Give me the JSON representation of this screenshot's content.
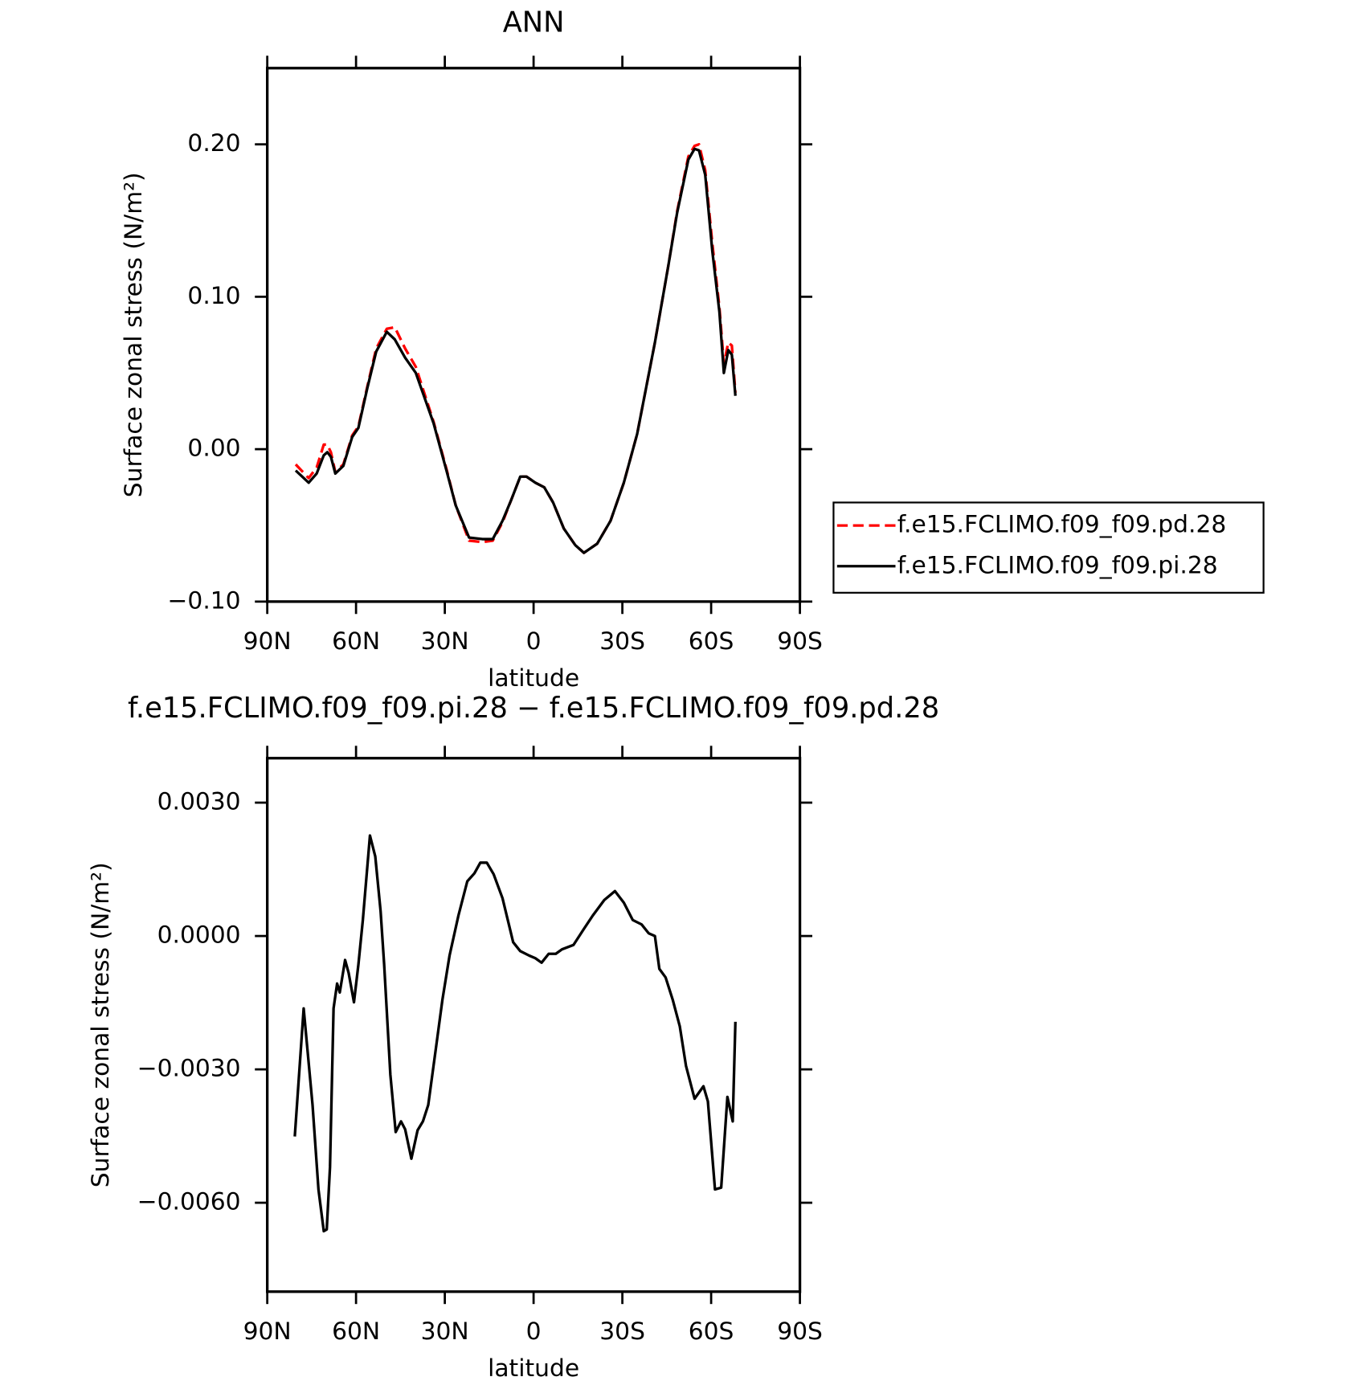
{
  "chart_data": [
    {
      "type": "line",
      "title": "ANN",
      "x_label": "latitude",
      "y_label": "Surface zonal stress (N/m²)",
      "xlim": [
        90,
        -90
      ],
      "xticks": [
        {
          "value": 90,
          "label": "90N"
        },
        {
          "value": 60,
          "label": "60N"
        },
        {
          "value": 30,
          "label": "30N"
        },
        0,
        {
          "value": -30,
          "label": "30S"
        },
        {
          "value": -60,
          "label": "60S"
        },
        {
          "value": -90,
          "label": "90S"
        }
      ],
      "ylim": [
        -0.1,
        0.25
      ],
      "yticks": [
        {
          "value": -0.1,
          "label": "−0.10"
        },
        {
          "value": 0,
          "label": "0.00"
        },
        {
          "value": 0.1,
          "label": "0.10"
        },
        {
          "value": 0.2,
          "label": "0.20"
        }
      ],
      "legend": "outside-right",
      "x": [
        80.4,
        76,
        73.3,
        70.9,
        69.7,
        68.5,
        67,
        64.3,
        61.3,
        59.2,
        56.2,
        53.2,
        49.6,
        46.9,
        43.4,
        39.8,
        33.8,
        29.3,
        26.3,
        21.8,
        17.3,
        13.8,
        10.5,
        7.5,
        4.5,
        2.4,
        -0.6,
        -3.6,
        -6.6,
        -10.2,
        -14.1,
        -17,
        -21.5,
        -26,
        -30.5,
        -35,
        -41,
        -45.5,
        -48.5,
        -52.3,
        -54.4,
        -55.9,
        -58,
        -60.4,
        -62.8,
        -64.3,
        -65.8,
        -67,
        -68.2
      ],
      "series": [
        {
          "name": "f.e15.FCLIMO.f09_f09.pd.28",
          "color": "#ff0000",
          "line_style": "dashed",
          "values": [
            -0.01,
            -0.019,
            -0.012,
            0.003,
            0.003,
            -0.002,
            -0.015,
            -0.01,
            0.009,
            0.015,
            0.041,
            0.066,
            0.079,
            0.08,
            0.066,
            0.054,
            0.018,
            -0.014,
            -0.037,
            -0.06,
            -0.061,
            -0.06,
            -0.048,
            -0.033,
            -0.018,
            -0.018,
            -0.022,
            -0.025,
            -0.035,
            -0.052,
            -0.063,
            -0.068,
            -0.062,
            -0.047,
            -0.022,
            0.01,
            0.07,
            0.12,
            0.156,
            0.192,
            0.199,
            0.2,
            0.183,
            0.135,
            0.093,
            0.056,
            0.07,
            0.068,
            0.037
          ]
        },
        {
          "name": "f.e15.FCLIMO.f09_f09.pi.28",
          "color": "#000000",
          "line_style": "solid",
          "values": [
            -0.014,
            -0.022,
            -0.016,
            -0.004,
            -0.002,
            -0.005,
            -0.016,
            -0.011,
            0.008,
            0.014,
            0.04,
            0.064,
            0.077,
            0.072,
            0.06,
            0.05,
            0.017,
            -0.015,
            -0.037,
            -0.058,
            -0.059,
            -0.059,
            -0.047,
            -0.033,
            -0.018,
            -0.018,
            -0.022,
            -0.025,
            -0.035,
            -0.052,
            -0.063,
            -0.068,
            -0.062,
            -0.047,
            -0.022,
            0.01,
            0.07,
            0.12,
            0.155,
            0.19,
            0.197,
            0.196,
            0.18,
            0.13,
            0.09,
            0.05,
            0.065,
            0.062,
            0.035
          ]
        }
      ]
    },
    {
      "type": "line",
      "title": "f.e15.FCLIMO.f09_f09.pi.28 − f.e15.FCLIMO.f09_f09.pd.28",
      "x_label": "latitude",
      "y_label": "Surface zonal stress (N/m²)",
      "xlim": [
        90,
        -90
      ],
      "xticks": [
        {
          "value": 90,
          "label": "90N"
        },
        {
          "value": 60,
          "label": "60N"
        },
        {
          "value": 30,
          "label": "30N"
        },
        0,
        {
          "value": -30,
          "label": "30S"
        },
        {
          "value": -60,
          "label": "60S"
        },
        {
          "value": -90,
          "label": "90S"
        }
      ],
      "ylim": [
        -0.008,
        0.004
      ],
      "yticks": [
        {
          "value": -0.006,
          "label": "−0.0060"
        },
        {
          "value": -0.003,
          "label": "−0.0030"
        },
        {
          "value": 0,
          "label": "0.0000"
        },
        {
          "value": 0.003,
          "label": "0.0030"
        }
      ],
      "x": [
        80.7,
        77.7,
        74.7,
        72.7,
        70.9,
        69.9,
        68.8,
        67.6,
        66.4,
        65.5,
        63.7,
        62.5,
        60.7,
        59.2,
        57.7,
        55.3,
        53.5,
        51.7,
        50.5,
        48.4,
        46.6,
        44.8,
        43.4,
        41.3,
        39.2,
        37.4,
        35.6,
        33.2,
        30.8,
        28.4,
        25.4,
        22.4,
        20,
        18,
        15.8,
        13.5,
        10.5,
        6.9,
        4.5,
        1.5,
        -0.6,
        -2.7,
        -5.1,
        -7.5,
        -9.6,
        -13.5,
        -17,
        -20,
        -23.9,
        -27.5,
        -30.5,
        -33.5,
        -36.5,
        -38.9,
        -41,
        -42.5,
        -44.6,
        -47,
        -49.4,
        -51.5,
        -54.4,
        -57.4,
        -58.9,
        -61.3,
        -63.4,
        -65.5,
        -67.3,
        -68.2
      ],
      "series": [
        {
          "color": "#000000",
          "line_style": "solid",
          "values": [
            -0.00451,
            -0.00163,
            -0.0038,
            -0.0057,
            -0.00664,
            -0.0066,
            -0.0052,
            -0.00163,
            -0.00107,
            -0.00127,
            -0.00054,
            -0.00083,
            -0.00149,
            -0.00064,
            0.00036,
            0.00226,
            0.00179,
            0.00056,
            -0.00064,
            -0.00312,
            -0.00441,
            -0.00417,
            -0.00435,
            -0.00501,
            -0.00437,
            -0.00417,
            -0.0038,
            -0.00262,
            -0.00143,
            -0.00044,
            0.00046,
            0.00123,
            0.00141,
            0.00165,
            0.00165,
            0.00139,
            0.00085,
            -0.00014,
            -0.00034,
            -0.00044,
            -0.0005,
            -0.0006,
            -0.0004,
            -0.0004,
            -0.0003,
            -0.0002,
            0.00016,
            0.00046,
            0.00081,
            0.00101,
            0.00075,
            0.00036,
            0.00026,
            6e-05,
            0,
            -0.00074,
            -0.00093,
            -0.00143,
            -0.00203,
            -0.00292,
            -0.00366,
            -0.00338,
            -0.00372,
            -0.0057,
            -0.00566,
            -0.00362,
            -0.00417,
            -0.00193
          ]
        }
      ]
    }
  ]
}
